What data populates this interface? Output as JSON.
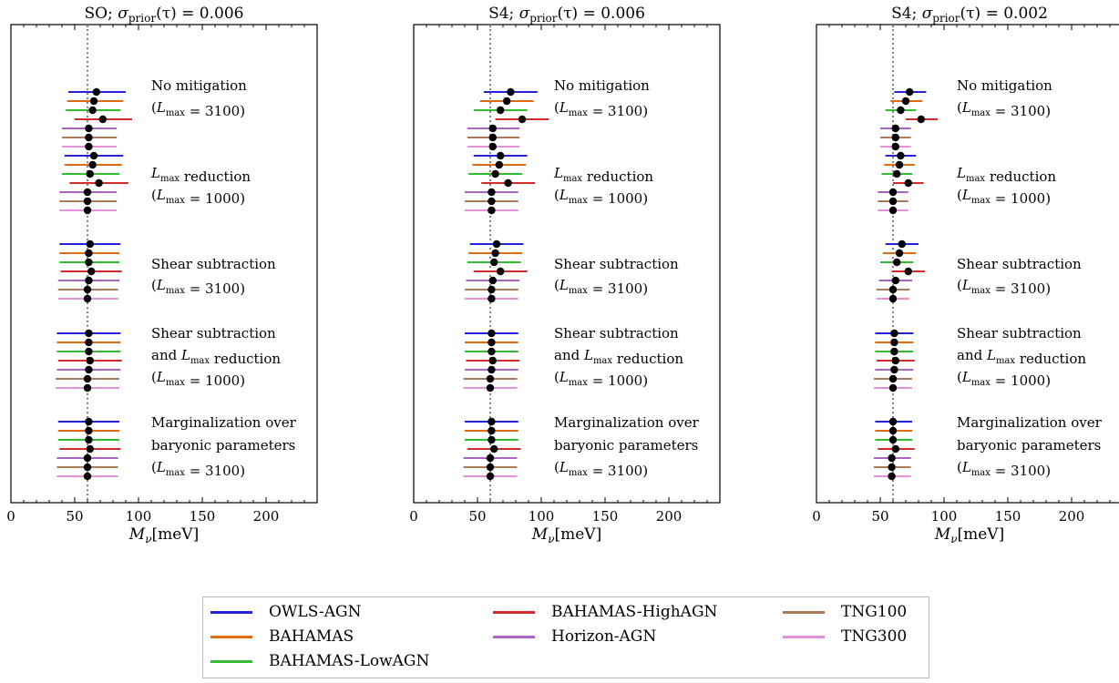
{
  "chart_data": [
    {
      "type": "errorbar",
      "title": "SO; σprior(τ) = 0.006",
      "title_parts": {
        "label": "SO; ",
        "sigma": "σ",
        "sub": "prior",
        "arg": "(τ) = 0.006"
      },
      "xlabel": "Mν[meV]",
      "xlim": [
        0,
        240
      ],
      "xticks": [
        "0",
        "50",
        "100",
        "150",
        "200"
      ],
      "true_value": 60,
      "groups": [
        {
          "label_lines": [
            "No mitigation",
            "(Lmax = 3100)"
          ],
          "points": [
            {
              "sim": "OWLS-AGN",
              "center": 67,
              "low": 45,
              "high": 90
            },
            {
              "sim": "BAHAMAS",
              "center": 65,
              "low": 44,
              "high": 88
            },
            {
              "sim": "BAHAMAS-LowAGN",
              "center": 64,
              "low": 43,
              "high": 86
            },
            {
              "sim": "BAHAMAS-HighAGN",
              "center": 72,
              "low": 50,
              "high": 95
            },
            {
              "sim": "Horizon-AGN",
              "center": 61,
              "low": 40,
              "high": 83
            },
            {
              "sim": "TNG100",
              "center": 61,
              "low": 40,
              "high": 83
            },
            {
              "sim": "TNG300",
              "center": 61,
              "low": 40,
              "high": 83
            }
          ]
        },
        {
          "label_lines": [
            "Lmax reduction",
            "(Lmax = 1000)"
          ],
          "points": [
            {
              "sim": "OWLS-AGN",
              "center": 65,
              "low": 42,
              "high": 88
            },
            {
              "sim": "BAHAMAS",
              "center": 64,
              "low": 42,
              "high": 87
            },
            {
              "sim": "BAHAMAS-LowAGN",
              "center": 62,
              "low": 40,
              "high": 85
            },
            {
              "sim": "BAHAMAS-HighAGN",
              "center": 69,
              "low": 46,
              "high": 92
            },
            {
              "sim": "Horizon-AGN",
              "center": 60,
              "low": 38,
              "high": 83
            },
            {
              "sim": "TNG100",
              "center": 60,
              "low": 38,
              "high": 83
            },
            {
              "sim": "TNG300",
              "center": 60,
              "low": 38,
              "high": 83
            }
          ]
        },
        {
          "label_lines": [
            "Shear subtraction",
            "(Lmax = 3100)"
          ],
          "points": [
            {
              "sim": "OWLS-AGN",
              "center": 62,
              "low": 38,
              "high": 86
            },
            {
              "sim": "BAHAMAS",
              "center": 61,
              "low": 38,
              "high": 85
            },
            {
              "sim": "BAHAMAS-LowAGN",
              "center": 61,
              "low": 38,
              "high": 85
            },
            {
              "sim": "BAHAMAS-HighAGN",
              "center": 63,
              "low": 39,
              "high": 87
            },
            {
              "sim": "Horizon-AGN",
              "center": 61,
              "low": 37,
              "high": 85
            },
            {
              "sim": "TNG100",
              "center": 60,
              "low": 37,
              "high": 84
            },
            {
              "sim": "TNG300",
              "center": 60,
              "low": 37,
              "high": 84
            }
          ]
        },
        {
          "label_lines": [
            "Shear subtraction",
            "and Lmax reduction",
            "(Lmax = 1000)"
          ],
          "points": [
            {
              "sim": "OWLS-AGN",
              "center": 61,
              "low": 36,
              "high": 86
            },
            {
              "sim": "BAHAMAS",
              "center": 61,
              "low": 36,
              "high": 86
            },
            {
              "sim": "BAHAMAS-LowAGN",
              "center": 61,
              "low": 36,
              "high": 86
            },
            {
              "sim": "BAHAMAS-HighAGN",
              "center": 62,
              "low": 37,
              "high": 87
            },
            {
              "sim": "Horizon-AGN",
              "center": 61,
              "low": 36,
              "high": 86
            },
            {
              "sim": "TNG100",
              "center": 60,
              "low": 35,
              "high": 85
            },
            {
              "sim": "TNG300",
              "center": 60,
              "low": 35,
              "high": 85
            }
          ]
        },
        {
          "label_lines": [
            "Marginalization over",
            "baryonic parameters",
            "(Lmax = 3100)"
          ],
          "points": [
            {
              "sim": "OWLS-AGN",
              "center": 61,
              "low": 37,
              "high": 85
            },
            {
              "sim": "BAHAMAS",
              "center": 61,
              "low": 37,
              "high": 85
            },
            {
              "sim": "BAHAMAS-LowAGN",
              "center": 61,
              "low": 37,
              "high": 85
            },
            {
              "sim": "BAHAMAS-HighAGN",
              "center": 62,
              "low": 38,
              "high": 86
            },
            {
              "sim": "Horizon-AGN",
              "center": 60,
              "low": 36,
              "high": 84
            },
            {
              "sim": "TNG100",
              "center": 60,
              "low": 36,
              "high": 84
            },
            {
              "sim": "TNG300",
              "center": 60,
              "low": 36,
              "high": 84
            }
          ]
        }
      ]
    },
    {
      "type": "errorbar",
      "title": "S4; σprior(τ) = 0.006",
      "title_parts": {
        "label": "S4; ",
        "sigma": "σ",
        "sub": "prior",
        "arg": "(τ) = 0.006"
      },
      "xlabel": "Mν[meV]",
      "xlim": [
        0,
        240
      ],
      "xticks": [
        "0",
        "50",
        "100",
        "150",
        "200"
      ],
      "true_value": 60,
      "groups": [
        {
          "label_lines": [
            "No mitigation",
            "(Lmax = 3100)"
          ],
          "points": [
            {
              "sim": "OWLS-AGN",
              "center": 76,
              "low": 55,
              "high": 97
            },
            {
              "sim": "BAHAMAS",
              "center": 73,
              "low": 52,
              "high": 94
            },
            {
              "sim": "BAHAMAS-LowAGN",
              "center": 68,
              "low": 47,
              "high": 89
            },
            {
              "sim": "BAHAMAS-HighAGN",
              "center": 85,
              "low": 64,
              "high": 106
            },
            {
              "sim": "Horizon-AGN",
              "center": 62,
              "low": 42,
              "high": 83
            },
            {
              "sim": "TNG100",
              "center": 62,
              "low": 42,
              "high": 83
            },
            {
              "sim": "TNG300",
              "center": 62,
              "low": 42,
              "high": 83
            }
          ]
        },
        {
          "label_lines": [
            "Lmax reduction",
            "(Lmax = 1000)"
          ],
          "points": [
            {
              "sim": "OWLS-AGN",
              "center": 68,
              "low": 47,
              "high": 89
            },
            {
              "sim": "BAHAMAS",
              "center": 67,
              "low": 46,
              "high": 88
            },
            {
              "sim": "BAHAMAS-LowAGN",
              "center": 64,
              "low": 43,
              "high": 85
            },
            {
              "sim": "BAHAMAS-HighAGN",
              "center": 74,
              "low": 53,
              "high": 95
            },
            {
              "sim": "Horizon-AGN",
              "center": 61,
              "low": 40,
              "high": 82
            },
            {
              "sim": "TNG100",
              "center": 61,
              "low": 40,
              "high": 82
            },
            {
              "sim": "TNG300",
              "center": 61,
              "low": 40,
              "high": 82
            }
          ]
        },
        {
          "label_lines": [
            "Shear subtraction",
            "(Lmax = 3100)"
          ],
          "points": [
            {
              "sim": "OWLS-AGN",
              "center": 65,
              "low": 44,
              "high": 86
            },
            {
              "sim": "BAHAMAS",
              "center": 64,
              "low": 43,
              "high": 85
            },
            {
              "sim": "BAHAMAS-LowAGN",
              "center": 63,
              "low": 42,
              "high": 84
            },
            {
              "sim": "BAHAMAS-HighAGN",
              "center": 68,
              "low": 47,
              "high": 89
            },
            {
              "sim": "Horizon-AGN",
              "center": 62,
              "low": 41,
              "high": 83
            },
            {
              "sim": "TNG100",
              "center": 61,
              "low": 40,
              "high": 82
            },
            {
              "sim": "TNG300",
              "center": 61,
              "low": 40,
              "high": 82
            }
          ]
        },
        {
          "label_lines": [
            "Shear subtraction",
            "and Lmax reduction",
            "(Lmax = 1000)"
          ],
          "points": [
            {
              "sim": "OWLS-AGN",
              "center": 61,
              "low": 40,
              "high": 82
            },
            {
              "sim": "BAHAMAS",
              "center": 61,
              "low": 40,
              "high": 82
            },
            {
              "sim": "BAHAMAS-LowAGN",
              "center": 61,
              "low": 40,
              "high": 82
            },
            {
              "sim": "BAHAMAS-HighAGN",
              "center": 62,
              "low": 41,
              "high": 83
            },
            {
              "sim": "Horizon-AGN",
              "center": 61,
              "low": 40,
              "high": 82
            },
            {
              "sim": "TNG100",
              "center": 60,
              "low": 39,
              "high": 81
            },
            {
              "sim": "TNG300",
              "center": 60,
              "low": 39,
              "high": 81
            }
          ]
        },
        {
          "label_lines": [
            "Marginalization over",
            "baryonic parameters",
            "(Lmax = 3100)"
          ],
          "points": [
            {
              "sim": "OWLS-AGN",
              "center": 61,
              "low": 40,
              "high": 82
            },
            {
              "sim": "BAHAMAS",
              "center": 61,
              "low": 40,
              "high": 82
            },
            {
              "sim": "BAHAMAS-LowAGN",
              "center": 61,
              "low": 40,
              "high": 82
            },
            {
              "sim": "BAHAMAS-HighAGN",
              "center": 63,
              "low": 42,
              "high": 84
            },
            {
              "sim": "Horizon-AGN",
              "center": 60,
              "low": 39,
              "high": 81
            },
            {
              "sim": "TNG100",
              "center": 60,
              "low": 39,
              "high": 81
            },
            {
              "sim": "TNG300",
              "center": 60,
              "low": 39,
              "high": 81
            }
          ]
        }
      ]
    },
    {
      "type": "errorbar",
      "title": "S4; σprior(τ) = 0.002",
      "title_parts": {
        "label": "S4; ",
        "sigma": "σ",
        "sub": "prior",
        "arg": "(τ) = 0.002"
      },
      "xlabel": "Mν[meV]",
      "xlim": [
        0,
        240
      ],
      "xticks": [
        "0",
        "50",
        "100",
        "150",
        "200"
      ],
      "true_value": 60,
      "groups": [
        {
          "label_lines": [
            "No mitigation",
            "(Lmax = 3100)"
          ],
          "points": [
            {
              "sim": "OWLS-AGN",
              "center": 73,
              "low": 61,
              "high": 86
            },
            {
              "sim": "BAHAMAS",
              "center": 70,
              "low": 58,
              "high": 83
            },
            {
              "sim": "BAHAMAS-LowAGN",
              "center": 66,
              "low": 54,
              "high": 78
            },
            {
              "sim": "BAHAMAS-HighAGN",
              "center": 82,
              "low": 70,
              "high": 95
            },
            {
              "sim": "Horizon-AGN",
              "center": 62,
              "low": 50,
              "high": 74
            },
            {
              "sim": "TNG100",
              "center": 62,
              "low": 50,
              "high": 74
            },
            {
              "sim": "TNG300",
              "center": 62,
              "low": 50,
              "high": 74
            }
          ]
        },
        {
          "label_lines": [
            "Lmax reduction",
            "(Lmax = 1000)"
          ],
          "points": [
            {
              "sim": "OWLS-AGN",
              "center": 66,
              "low": 54,
              "high": 78
            },
            {
              "sim": "BAHAMAS",
              "center": 65,
              "low": 53,
              "high": 77
            },
            {
              "sim": "BAHAMAS-LowAGN",
              "center": 63,
              "low": 51,
              "high": 75
            },
            {
              "sim": "BAHAMAS-HighAGN",
              "center": 72,
              "low": 60,
              "high": 84
            },
            {
              "sim": "Horizon-AGN",
              "center": 60,
              "low": 48,
              "high": 72
            },
            {
              "sim": "TNG100",
              "center": 60,
              "low": 48,
              "high": 72
            },
            {
              "sim": "TNG300",
              "center": 60,
              "low": 48,
              "high": 72
            }
          ]
        },
        {
          "label_lines": [
            "Shear subtraction",
            "(Lmax = 3100)"
          ],
          "points": [
            {
              "sim": "OWLS-AGN",
              "center": 67,
              "low": 54,
              "high": 80
            },
            {
              "sim": "BAHAMAS",
              "center": 65,
              "low": 52,
              "high": 78
            },
            {
              "sim": "BAHAMAS-LowAGN",
              "center": 63,
              "low": 50,
              "high": 76
            },
            {
              "sim": "BAHAMAS-HighAGN",
              "center": 72,
              "low": 59,
              "high": 85
            },
            {
              "sim": "Horizon-AGN",
              "center": 62,
              "low": 49,
              "high": 75
            },
            {
              "sim": "TNG100",
              "center": 60,
              "low": 47,
              "high": 73
            },
            {
              "sim": "TNG300",
              "center": 60,
              "low": 47,
              "high": 73
            }
          ]
        },
        {
          "label_lines": [
            "Shear subtraction",
            "and Lmax reduction",
            "(Lmax = 1000)"
          ],
          "points": [
            {
              "sim": "OWLS-AGN",
              "center": 61,
              "low": 46,
              "high": 76
            },
            {
              "sim": "BAHAMAS",
              "center": 61,
              "low": 46,
              "high": 76
            },
            {
              "sim": "BAHAMAS-LowAGN",
              "center": 61,
              "low": 46,
              "high": 76
            },
            {
              "sim": "BAHAMAS-HighAGN",
              "center": 62,
              "low": 47,
              "high": 77
            },
            {
              "sim": "Horizon-AGN",
              "center": 61,
              "low": 46,
              "high": 76
            },
            {
              "sim": "TNG100",
              "center": 60,
              "low": 45,
              "high": 75
            },
            {
              "sim": "TNG300",
              "center": 60,
              "low": 45,
              "high": 75
            }
          ]
        },
        {
          "label_lines": [
            "Marginalization over",
            "baryonic parameters",
            "(Lmax = 3100)"
          ],
          "points": [
            {
              "sim": "OWLS-AGN",
              "center": 60,
              "low": 46,
              "high": 75
            },
            {
              "sim": "BAHAMAS",
              "center": 60,
              "low": 46,
              "high": 75
            },
            {
              "sim": "BAHAMAS-LowAGN",
              "center": 60,
              "low": 46,
              "high": 75
            },
            {
              "sim": "BAHAMAS-HighAGN",
              "center": 62,
              "low": 48,
              "high": 77
            },
            {
              "sim": "Horizon-AGN",
              "center": 59,
              "low": 45,
              "high": 74
            },
            {
              "sim": "TNG100",
              "center": 59,
              "low": 45,
              "high": 74
            },
            {
              "sim": "TNG300",
              "center": 59,
              "low": 45,
              "high": 74
            }
          ]
        }
      ]
    }
  ],
  "legend": {
    "items": [
      {
        "label": "OWLS-AGN",
        "color": "#2222dd"
      },
      {
        "label": "BAHAMAS",
        "color": "#e06b10"
      },
      {
        "label": "BAHAMAS-LowAGN",
        "color": "#33bb33"
      },
      {
        "label": "BAHAMAS-HighAGN",
        "color": "#d42a2a"
      },
      {
        "label": "Horizon-AGN",
        "color": "#a866c2"
      },
      {
        "label": "TNG100",
        "color": "#ad7b5a"
      },
      {
        "label": "TNG300",
        "color": "#e690d9"
      }
    ]
  },
  "colors": {
    "point": "#000000",
    "true_line": "#777777",
    "axes": "#000000"
  }
}
